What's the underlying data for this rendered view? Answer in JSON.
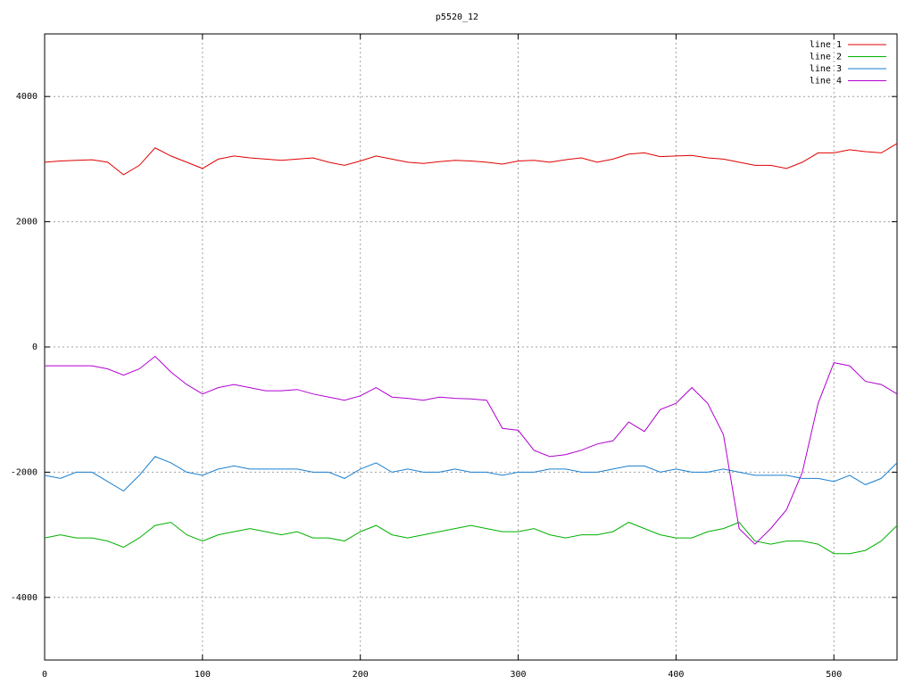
{
  "chart_data": {
    "type": "line",
    "title": "p5520_12",
    "x": [
      0,
      10,
      20,
      30,
      40,
      50,
      60,
      70,
      80,
      90,
      100,
      110,
      120,
      130,
      140,
      150,
      160,
      170,
      180,
      190,
      200,
      210,
      220,
      230,
      240,
      250,
      260,
      270,
      280,
      290,
      300,
      310,
      320,
      330,
      340,
      350,
      360,
      370,
      380,
      390,
      400,
      410,
      420,
      430,
      440,
      450,
      460,
      470,
      480,
      490,
      500,
      510,
      520,
      530,
      540
    ],
    "series": [
      {
        "name": "line 1",
        "color": "#e00000",
        "values": [
          2950,
          2970,
          2980,
          2990,
          2950,
          2750,
          2900,
          3180,
          3050,
          2950,
          2850,
          3000,
          3050,
          3020,
          3000,
          2980,
          3000,
          3020,
          2950,
          2900,
          2970,
          3050,
          3000,
          2950,
          2930,
          2960,
          2980,
          2970,
          2950,
          2920,
          2970,
          2980,
          2950,
          2990,
          3020,
          2950,
          3000,
          3080,
          3100,
          3040,
          3050,
          3060,
          3020,
          3000,
          2950,
          2900,
          2900,
          2850,
          2950,
          3100,
          3100,
          3150,
          3120,
          3100,
          3250
        ]
      },
      {
        "name": "line 2",
        "color": "#00b000",
        "values": [
          -3050,
          -3000,
          -3050,
          -3050,
          -3100,
          -3200,
          -3050,
          -2850,
          -2800,
          -3000,
          -3100,
          -3000,
          -2950,
          -2900,
          -2950,
          -3000,
          -2950,
          -3050,
          -3050,
          -3100,
          -2950,
          -2850,
          -3000,
          -3050,
          -3000,
          -2950,
          -2900,
          -2850,
          -2900,
          -2950,
          -2950,
          -2900,
          -3000,
          -3050,
          -3000,
          -3000,
          -2950,
          -2800,
          -2900,
          -3000,
          -3050,
          -3050,
          -2950,
          -2900,
          -2800,
          -3100,
          -3150,
          -3100,
          -3100,
          -3150,
          -3300,
          -3300,
          -3250,
          -3100,
          -2850
        ]
      },
      {
        "name": "line 3",
        "color": "#1a7fd0",
        "values": [
          -2050,
          -2100,
          -2000,
          -2000,
          -2150,
          -2300,
          -2050,
          -1750,
          -1850,
          -2000,
          -2050,
          -1950,
          -1900,
          -1950,
          -1950,
          -1950,
          -1950,
          -2000,
          -2000,
          -2100,
          -1950,
          -1850,
          -2000,
          -1950,
          -2000,
          -2000,
          -1950,
          -2000,
          -2000,
          -2050,
          -2000,
          -2000,
          -1950,
          -1950,
          -2000,
          -2000,
          -1950,
          -1900,
          -1900,
          -2000,
          -1950,
          -2000,
          -2000,
          -1950,
          -2000,
          -2050,
          -2050,
          -2050,
          -2100,
          -2100,
          -2150,
          -2050,
          -2200,
          -2100,
          -1850
        ]
      },
      {
        "name": "line 4",
        "color": "#b000d0",
        "values": [
          -300,
          -300,
          -300,
          -300,
          -350,
          -450,
          -350,
          -150,
          -400,
          -600,
          -750,
          -650,
          -600,
          -650,
          -700,
          -700,
          -680,
          -750,
          -800,
          -850,
          -780,
          -650,
          -800,
          -820,
          -850,
          -800,
          -820,
          -830,
          -850,
          -1300,
          -1330,
          -1650,
          -1750,
          -1720,
          -1650,
          -1550,
          -1500,
          -1200,
          -1350,
          -1000,
          -900,
          -650,
          -900,
          -1400,
          -2900,
          -3150,
          -2900,
          -2600,
          -2000,
          -900,
          -250,
          -300,
          -550,
          -600,
          -750
        ]
      }
    ],
    "xlim": [
      0,
      540
    ],
    "xticks": [
      0,
      100,
      200,
      300,
      400,
      500
    ],
    "ylim": [
      -5000,
      5000
    ],
    "yticks": [
      -4000,
      -2000,
      0,
      2000,
      4000
    ],
    "grid": true,
    "legend": "top-right"
  }
}
